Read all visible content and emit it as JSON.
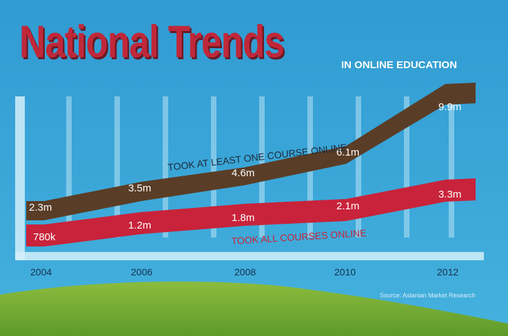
{
  "header": {
    "title": "National Trends",
    "subtitle": "IN ONLINE EDUCATION"
  },
  "source": "Source: Aslanian Market Research",
  "colors": {
    "sky": "#3aa6d8",
    "hill": "#7fae38",
    "series_at_least_one": "#5a3d26",
    "series_all": "#c8233a",
    "grid": "#b8e2f4",
    "title": "#c0283a"
  },
  "chart_data": {
    "type": "area",
    "x": [
      "2004",
      "2006",
      "2008",
      "2010",
      "2012"
    ],
    "series": [
      {
        "name": "TOOK AT LEAST ONE COURSE ONLINE",
        "values": [
          2.3,
          3.5,
          4.6,
          6.1,
          9.9
        ],
        "labels": [
          "2.3m",
          "3.5m",
          "4.6m",
          "6.1m",
          "9.9m"
        ]
      },
      {
        "name": "TOOK ALL COURSES ONLINE",
        "values": [
          0.78,
          1.2,
          1.8,
          2.1,
          3.3
        ],
        "labels": [
          "780k",
          "1.2m",
          "1.8m",
          "2.1m",
          "3.3m"
        ]
      }
    ],
    "title": "National Trends",
    "subtitle": "IN ONLINE EDUCATION",
    "xlabel": "",
    "ylabel": "",
    "grid": true,
    "legend": "inline"
  }
}
